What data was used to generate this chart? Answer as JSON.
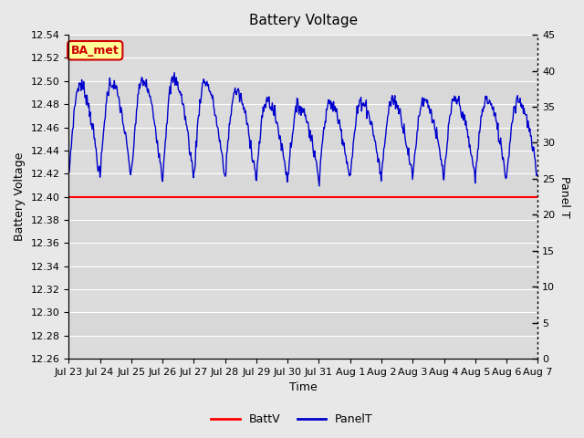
{
  "title": "Battery Voltage",
  "xlabel": "Time",
  "ylabel_left": "Battery Voltage",
  "ylabel_right": "Panel T",
  "ylim_left": [
    12.26,
    12.54
  ],
  "ylim_right": [
    0,
    45
  ],
  "yticks_left": [
    12.26,
    12.28,
    12.3,
    12.32,
    12.34,
    12.36,
    12.38,
    12.4,
    12.42,
    12.44,
    12.46,
    12.48,
    12.5,
    12.52,
    12.54
  ],
  "yticks_right": [
    0,
    5,
    10,
    15,
    20,
    25,
    30,
    35,
    40,
    45
  ],
  "x_tick_labels": [
    "Jul 23",
    "Jul 24",
    "Jul 25",
    "Jul 26",
    "Jul 27",
    "Jul 28",
    "Jul 29",
    "Jul 30",
    "Jul 31",
    "Aug 1",
    "Aug 2",
    "Aug 3",
    "Aug 4",
    "Aug 5",
    "Aug 6",
    "Aug 7"
  ],
  "batt_v_value": 12.4,
  "batt_color": "#ff0000",
  "panel_color": "#0000cc",
  "fig_bg_color": "#e8e8e8",
  "plot_bg_color": "#d8d8d8",
  "legend_batt_label": "BattV",
  "legend_panel_label": "PanelT",
  "annotation_text": "BA_met",
  "annotation_bg": "#ffff99",
  "annotation_border": "#cc0000",
  "annotation_text_color": "#cc0000",
  "title_fontsize": 11,
  "label_fontsize": 9,
  "tick_fontsize": 8
}
